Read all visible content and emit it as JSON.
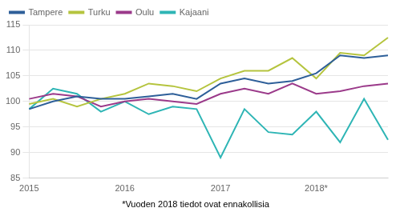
{
  "chart_data": {
    "type": "line",
    "categories": [
      "2015",
      null,
      null,
      null,
      "2016",
      null,
      null,
      null,
      "2017",
      null,
      null,
      null,
      "2018*",
      null,
      null,
      null
    ],
    "series": [
      {
        "name": "Tampere",
        "color": "#2e5f99",
        "values": [
          98.5,
          100.0,
          101.0,
          100.5,
          100.5,
          101.0,
          101.5,
          100.5,
          103.5,
          104.5,
          103.5,
          104.0,
          105.5,
          109.0,
          108.5,
          109.0
        ]
      },
      {
        "name": "Turku",
        "color": "#b5c43e",
        "values": [
          99.5,
          100.5,
          99.0,
          100.5,
          101.5,
          103.5,
          103.0,
          102.0,
          104.5,
          106.0,
          106.0,
          108.5,
          104.5,
          109.5,
          109.0,
          112.5
        ]
      },
      {
        "name": "Oulu",
        "color": "#9b3a8a",
        "values": [
          100.5,
          101.5,
          101.0,
          99.0,
          100.0,
          100.5,
          100.0,
          99.5,
          101.5,
          102.5,
          101.5,
          103.5,
          101.5,
          102.0,
          103.0,
          103.5
        ]
      },
      {
        "name": "Kajaani",
        "color": "#2eb5b5",
        "values": [
          98.5,
          102.5,
          101.5,
          98.0,
          100.0,
          97.5,
          99.0,
          98.5,
          89.0,
          98.5,
          94.0,
          93.5,
          98.0,
          92.0,
          100.5,
          92.5
        ]
      }
    ],
    "ylim": [
      85,
      115
    ],
    "yticks": [
      85,
      90,
      95,
      100,
      105,
      110,
      115
    ],
    "grid": "y",
    "legend": "upper left",
    "marker": "none",
    "annotations": [
      "*Vuoden 2018 tiedot ovat ennakollisia"
    ]
  }
}
